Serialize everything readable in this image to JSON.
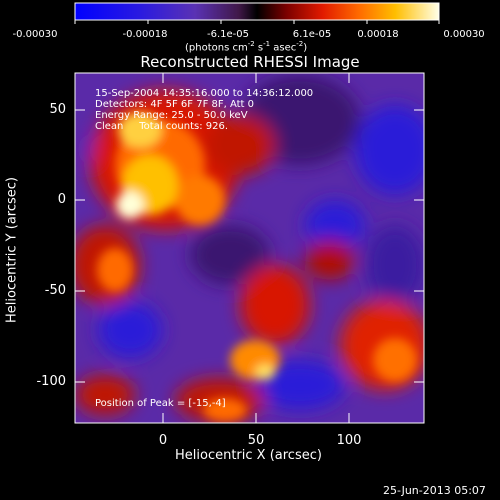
{
  "chart_data": {
    "type": "heatmap",
    "title": "Reconstructed RHESSI Image",
    "xlabel": "Heliocentric X (arcsec)",
    "ylabel": "Heliocentric Y (arcsec)",
    "xlim": [
      -47,
      140
    ],
    "ylim": [
      -120,
      65
    ],
    "xticks": [
      "0",
      "50",
      "100"
    ],
    "yticks": [
      "50",
      "0",
      "-50",
      "-100"
    ],
    "colorbar": {
      "ticks": [
        "-0.00030",
        "-0.00018",
        "-6.1e-05",
        "6.1e-05",
        "0.00018",
        "0.00030"
      ],
      "unit_text": "(photons cm",
      "unit_sup1": "-2",
      "unit_mid": " s",
      "unit_sup2": "-1",
      "unit_end": " asec",
      "unit_sup3": "-2",
      "unit_close": ")"
    },
    "annotations": [
      "15-Sep-2004 14:35:16.000 to 14:36:12.000",
      "Detectors: 4F 5F 6F 7F 8F, Att 0",
      "Energy Range: 25.0 - 50.0 keV",
      "Clean     Total counts: 926."
    ],
    "peak_label": "Position of Peak = [-15,-4]",
    "footer_date": "25-Jun-2013 05:07"
  }
}
